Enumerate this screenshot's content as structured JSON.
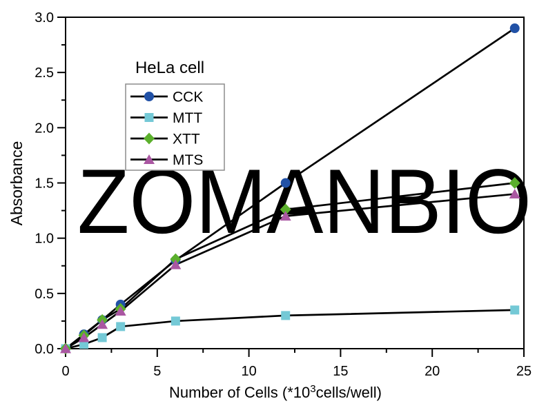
{
  "watermark": "ZOMANBIO",
  "colors": {
    "axis": "#000000",
    "line": "#000000",
    "watermark": "#e7e7e7",
    "legend_border": "#8c8c8c",
    "background": "#ffffff",
    "cck_blue": "#2151a6",
    "mtt_cyan": "#74c9d6",
    "xtt_green": "#5bb02c",
    "mts_purple": "#aa57a2"
  },
  "chart_data": {
    "type": "line",
    "title": "HeLa cell",
    "xlabel": "Number of Cells (*10³cells/well)",
    "xlabel_pre": "Number of Cells (*10",
    "xlabel_sup": "3",
    "xlabel_post": "cells/well)",
    "ylabel": "Absorbance",
    "xlim": [
      0,
      25
    ],
    "ylim": [
      0,
      3
    ],
    "grid": "off",
    "x_major_ticks": [
      0,
      5,
      10,
      15,
      20,
      25
    ],
    "x_tick_labels": [
      "0",
      "5",
      "10",
      "15",
      "20",
      "25"
    ],
    "x_minor_ticks": [
      2.5,
      7.5,
      12.5,
      17.5,
      22.5
    ],
    "y_major_ticks": [
      0,
      0.5,
      1,
      1.5,
      2,
      2.5,
      3
    ],
    "y_tick_labels": [
      "0.0",
      "0.5",
      "1.0",
      "1.5",
      "2.0",
      "2.5",
      "3.0"
    ],
    "y_minor_ticks": [
      0.25,
      0.75,
      1.25,
      1.75,
      2.25,
      2.75
    ],
    "x": [
      0,
      1,
      2,
      3,
      6,
      12,
      24.5
    ],
    "series": [
      {
        "name": "CCK",
        "marker": "circle",
        "color": "#2151a6",
        "line_color": "#000000",
        "values": [
          0,
          0.13,
          0.26,
          0.4,
          0.8,
          1.5,
          2.9
        ]
      },
      {
        "name": "MTT",
        "marker": "square",
        "color": "#74c9d6",
        "line_color": "#000000",
        "values": [
          0,
          0.04,
          0.1,
          0.2,
          0.25,
          0.3,
          0.35
        ]
      },
      {
        "name": "XTT",
        "marker": "diamond",
        "color": "#5bb02c",
        "line_color": "#000000",
        "values": [
          0,
          0.12,
          0.26,
          0.36,
          0.81,
          1.26,
          1.5
        ]
      },
      {
        "name": "MTS",
        "marker": "triangle",
        "color": "#aa57a2",
        "line_color": "#000000",
        "values": [
          0,
          0.1,
          0.22,
          0.34,
          0.76,
          1.2,
          1.4
        ]
      }
    ],
    "legend": {
      "title": "HeLa cell",
      "position": "upper-left-inside",
      "entries": [
        "CCK",
        "MTT",
        "XTT",
        "MTS"
      ]
    }
  }
}
